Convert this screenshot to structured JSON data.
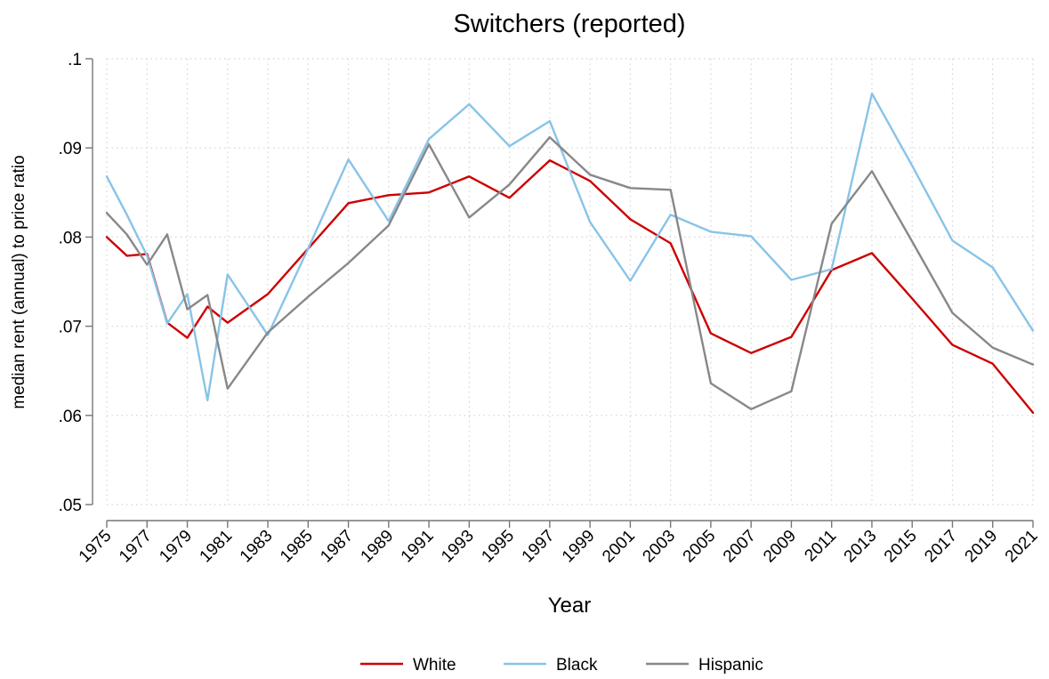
{
  "chart_data": {
    "type": "line",
    "title": "Switchers (reported)",
    "xlabel": "Year",
    "ylabel": "median rent (annual) to price ratio",
    "xlim": [
      1975,
      2021
    ],
    "ylim": [
      0.05,
      0.1
    ],
    "x_ticks": [
      1975,
      1977,
      1979,
      1981,
      1983,
      1985,
      1987,
      1989,
      1991,
      1993,
      1995,
      1997,
      1999,
      2001,
      2003,
      2005,
      2007,
      2009,
      2011,
      2013,
      2015,
      2017,
      2019,
      2021
    ],
    "y_ticks": [
      0.05,
      0.06,
      0.07,
      0.08,
      0.09,
      0.1
    ],
    "y_tick_labels": [
      ".05",
      ".06",
      ".07",
      ".08",
      ".09",
      ".1"
    ],
    "grid": true,
    "legend_position": "bottom",
    "series": [
      {
        "name": "White",
        "color": "#cc0000",
        "x": [
          1975,
          1976,
          1977,
          1978,
          1979,
          1980,
          1981,
          1983,
          1985,
          1987,
          1989,
          1991,
          1993,
          1995,
          1997,
          1999,
          2001,
          2003,
          2005,
          2007,
          2009,
          2011,
          2013,
          2015,
          2017,
          2019,
          2021
        ],
        "values": [
          0.08,
          0.0779,
          0.0781,
          0.0704,
          0.0687,
          0.0722,
          0.0704,
          0.0736,
          0.0787,
          0.0838,
          0.0847,
          0.085,
          0.0868,
          0.0844,
          0.0886,
          0.0863,
          0.082,
          0.0793,
          0.0692,
          0.067,
          0.0688,
          0.0763,
          0.0782,
          0.0731,
          0.0679,
          0.0658,
          0.0603
        ]
      },
      {
        "name": "Black",
        "color": "#88c4e8",
        "x": [
          1975,
          1976,
          1977,
          1978,
          1979,
          1980,
          1981,
          1983,
          1985,
          1987,
          1989,
          1991,
          1993,
          1995,
          1997,
          1999,
          2001,
          2003,
          2005,
          2007,
          2009,
          2011,
          2013,
          2015,
          2017,
          2019,
          2021
        ],
        "values": [
          0.0868,
          0.0825,
          0.0779,
          0.0703,
          0.0736,
          0.0617,
          0.0758,
          0.069,
          0.0787,
          0.0887,
          0.0818,
          0.091,
          0.0949,
          0.0902,
          0.093,
          0.0817,
          0.0751,
          0.0825,
          0.0806,
          0.0801,
          0.0752,
          0.0764,
          0.0961,
          0.088,
          0.0796,
          0.0766,
          0.0695
        ]
      },
      {
        "name": "Hispanic",
        "color": "#888888",
        "x": [
          1975,
          1976,
          1977,
          1978,
          1979,
          1980,
          1981,
          1983,
          1985,
          1987,
          1989,
          1991,
          1993,
          1995,
          1997,
          1999,
          2001,
          2003,
          2005,
          2007,
          2009,
          2011,
          2013,
          2015,
          2017,
          2019,
          2021
        ],
        "values": [
          0.0827,
          0.0803,
          0.0769,
          0.0803,
          0.0719,
          0.0735,
          0.063,
          0.0693,
          0.0733,
          0.0771,
          0.0813,
          0.0904,
          0.0822,
          0.0859,
          0.0912,
          0.087,
          0.0855,
          0.0853,
          0.0636,
          0.0607,
          0.0627,
          0.0815,
          0.0874,
          0.0795,
          0.0715,
          0.0676,
          0.0657
        ]
      }
    ]
  }
}
